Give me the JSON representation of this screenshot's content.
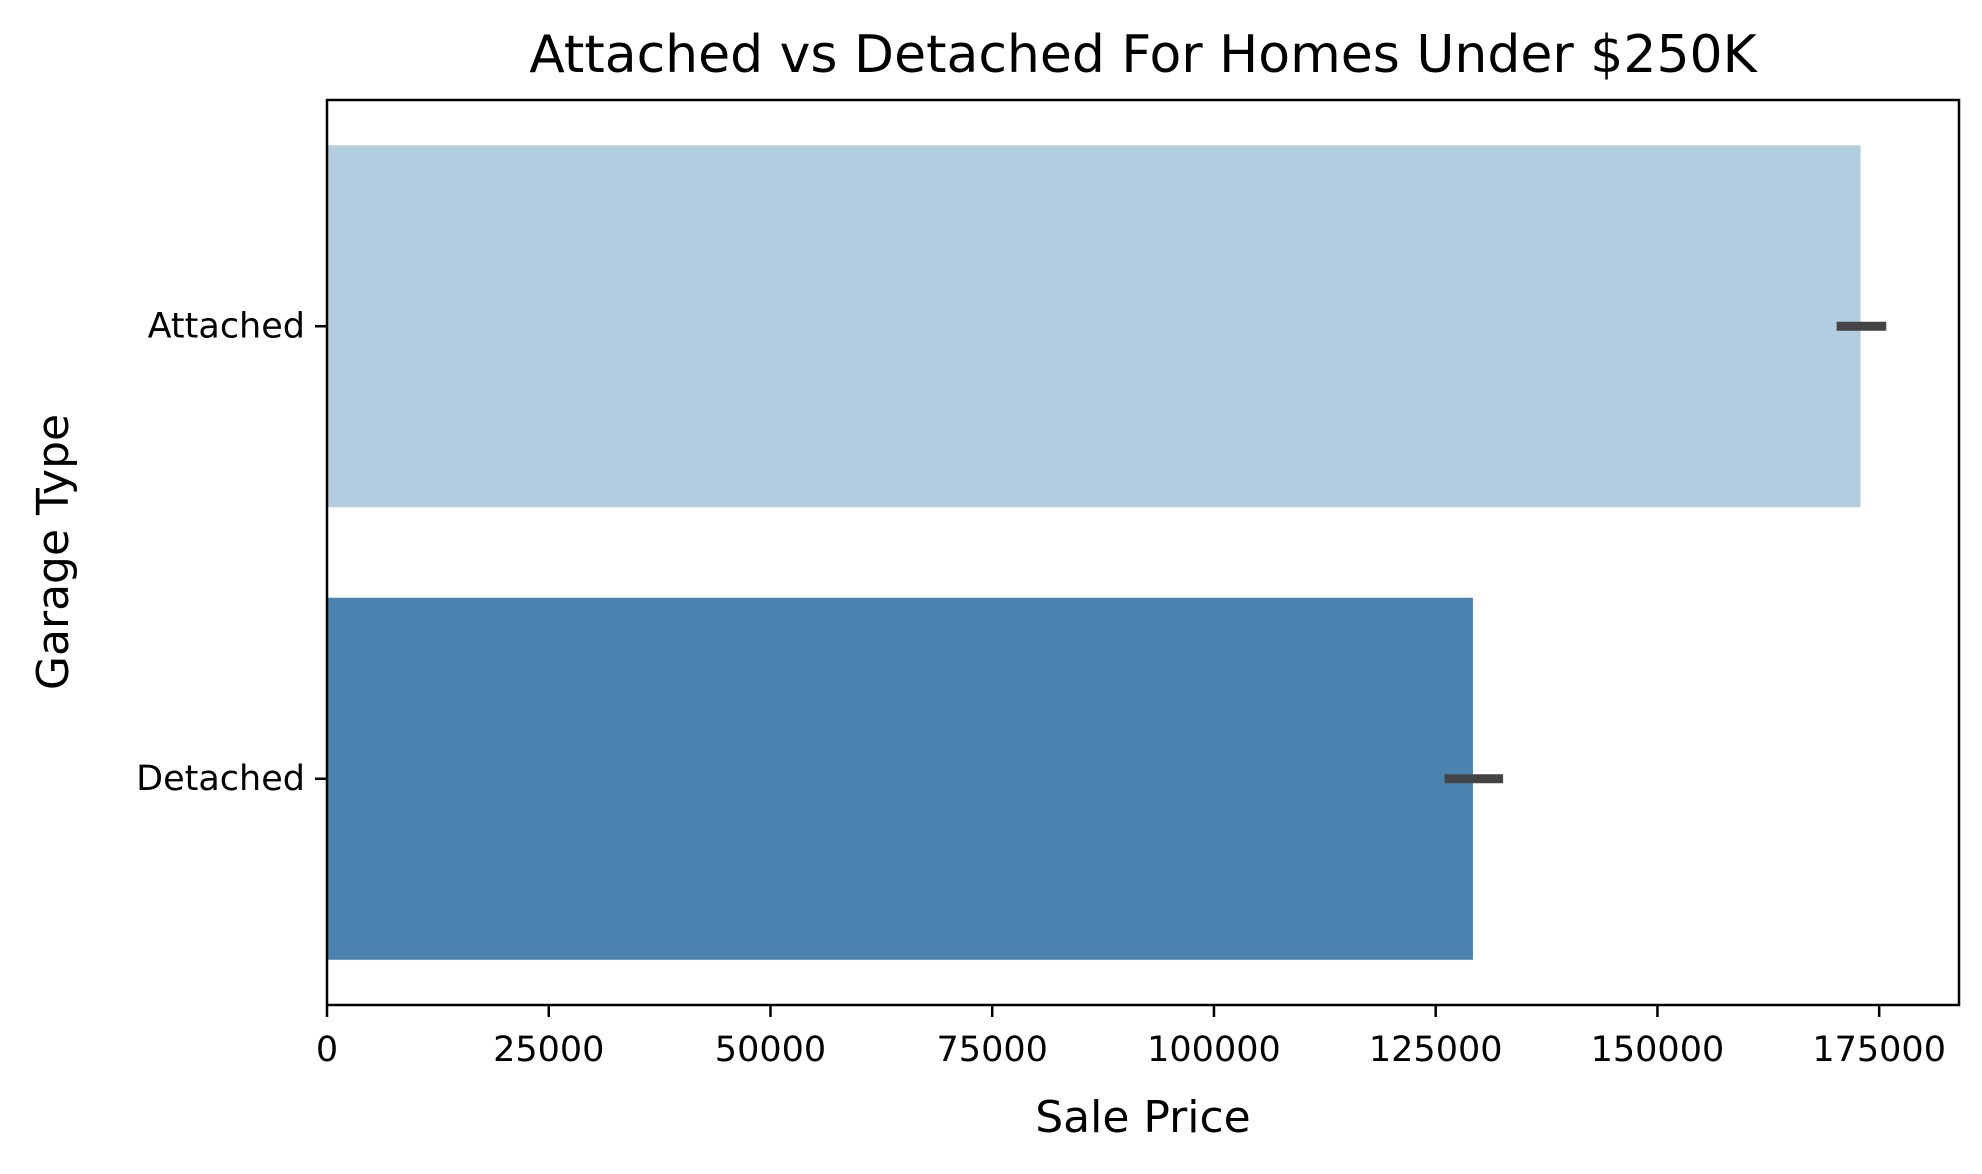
{
  "chart_data": {
    "type": "bar",
    "orientation": "horizontal",
    "title": "Attached vs Detached For Homes Under $250K",
    "xlabel": "Sale Price",
    "ylabel": "Garage Type",
    "categories": [
      "Attached",
      "Detached"
    ],
    "values": [
      172900,
      129200
    ],
    "error_bars": [
      {
        "low": 170200,
        "high": 175800
      },
      {
        "low": 126000,
        "high": 132600
      }
    ],
    "colors": [
      "#b3cde0",
      "#4a83b0"
    ],
    "error_bar_color": "#444444",
    "xlim": [
      0,
      184000
    ],
    "xticks": [
      0,
      25000,
      50000,
      75000,
      100000,
      125000,
      150000,
      175000
    ],
    "grid": false,
    "legend": "none"
  }
}
